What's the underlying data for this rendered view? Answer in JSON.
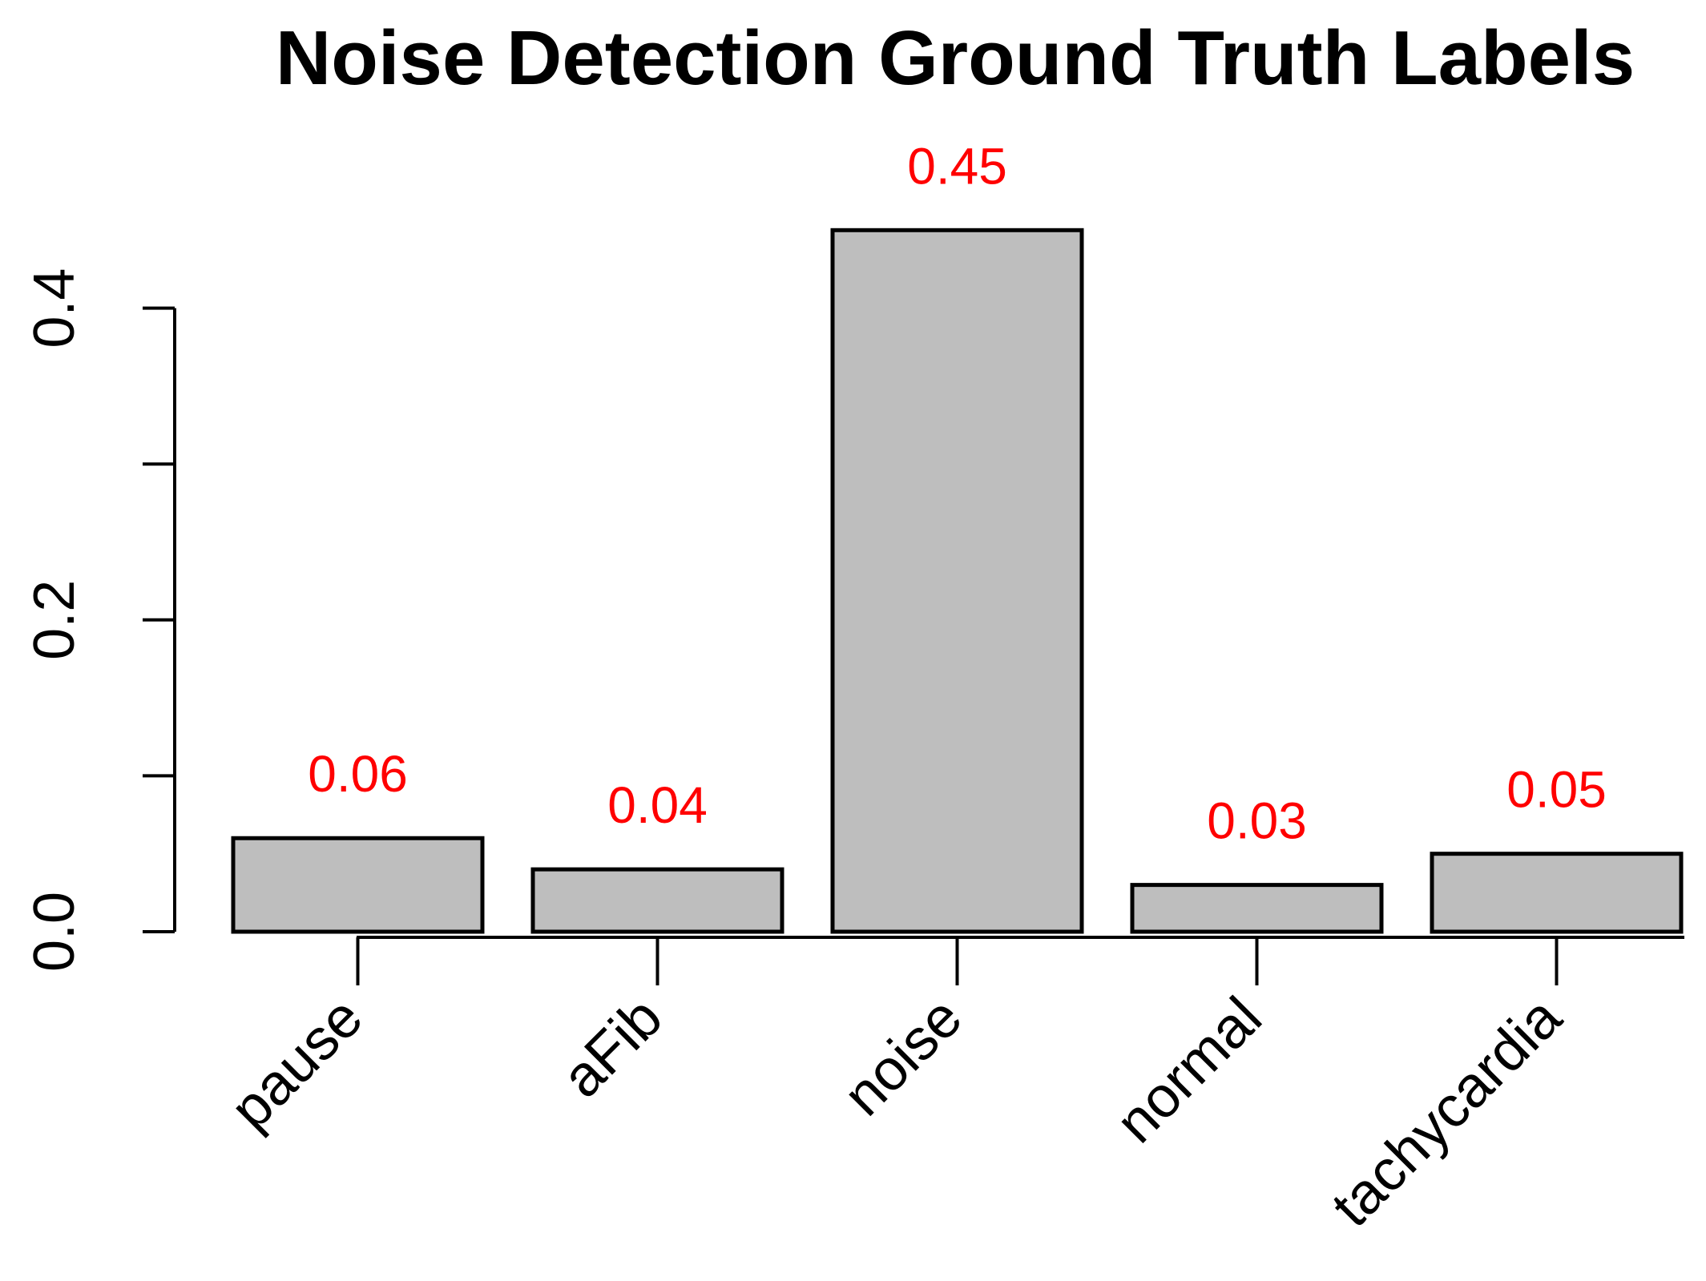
{
  "chart_data": {
    "type": "bar",
    "title": "Noise Detection Ground Truth Labels",
    "xlabel": "",
    "ylabel": "",
    "categories": [
      "pause",
      "aFib",
      "noise",
      "normal",
      "tachycardia"
    ],
    "values": [
      0.06,
      0.04,
      0.45,
      0.03,
      0.05
    ],
    "value_labels": [
      "0.06",
      "0.04",
      "0.45",
      "0.03",
      "0.05"
    ],
    "yticks": [
      0.0,
      0.1,
      0.2,
      0.3,
      0.4
    ],
    "ytick_labels": [
      "0.0",
      "",
      "0.2",
      "",
      "0.4"
    ],
    "ylim": [
      0,
      0.45
    ],
    "grid": false,
    "colors": {
      "bar_fill": "#bebebe",
      "bar_stroke": "#000000",
      "data_label": "#ff0000"
    }
  }
}
